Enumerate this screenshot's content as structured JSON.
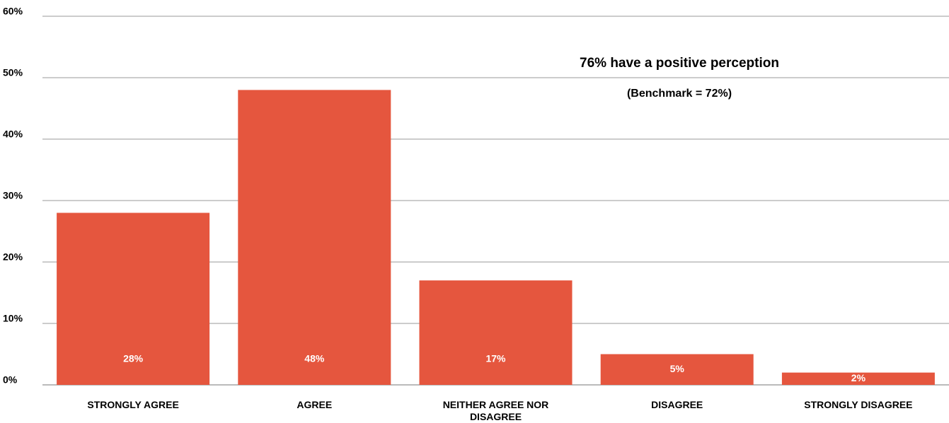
{
  "chart_data": {
    "type": "bar",
    "annotations": [
      "76% have a positive perception",
      "(Benchmark = 72%)"
    ],
    "categories": [
      "STRONGLY AGREE",
      "AGREE",
      "NEITHER AGREE NOR DISAGREE",
      "DISAGREE",
      "STRONGLY DISAGREE"
    ],
    "values": [
      28,
      48,
      17,
      5,
      2
    ],
    "value_labels": [
      "28%",
      "48%",
      "17%",
      "5%",
      "2%"
    ],
    "color": "#e5563e",
    "ylim": [
      0,
      60
    ],
    "yticks": [
      {
        "value": 0,
        "label": "0%"
      },
      {
        "value": 10,
        "label": "10%"
      },
      {
        "value": 20,
        "label": "20%"
      },
      {
        "value": 30,
        "label": "30%"
      },
      {
        "value": 40,
        "label": "40%"
      },
      {
        "value": 50,
        "label": "50%"
      },
      {
        "value": 60,
        "label": "60%"
      }
    ],
    "grid": true
  }
}
